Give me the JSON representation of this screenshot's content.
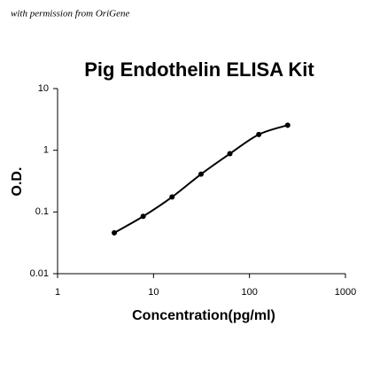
{
  "chart_data": {
    "type": "line",
    "annotation": "with permission from OriGene",
    "title": "Pig Endothelin ELISA Kit",
    "x_label": "Concentration(pg/ml)",
    "y_label": "O.D.",
    "x": [
      3.9,
      7.8,
      15.6,
      31.25,
      62.5,
      125,
      250
    ],
    "values": [
      0.046,
      0.085,
      0.175,
      0.41,
      0.88,
      1.8,
      2.55
    ],
    "color": "#000000",
    "xscale": "log",
    "yscale": "log",
    "xlim": [
      1,
      1000
    ],
    "ylim": [
      0.01,
      10
    ],
    "xticks": [
      1,
      10,
      100,
      1000
    ],
    "yticks": [
      0.01,
      0.1,
      1,
      10
    ]
  }
}
